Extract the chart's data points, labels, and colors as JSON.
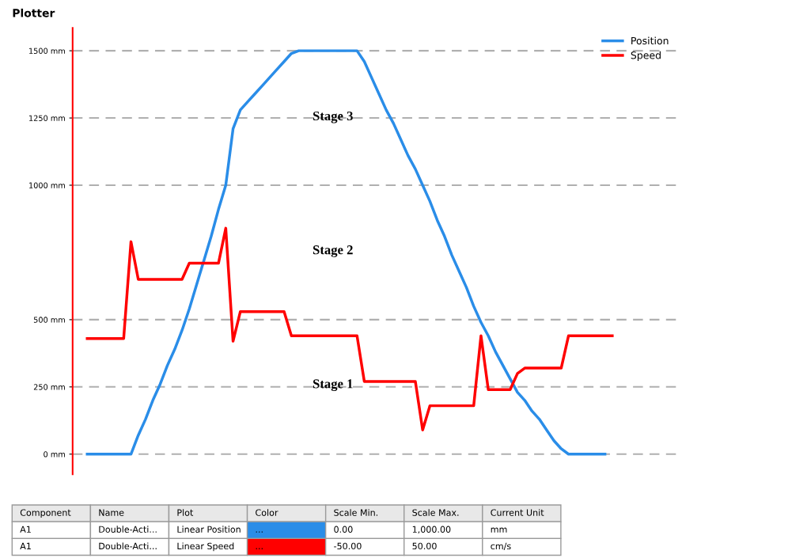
{
  "chart_data": {
    "type": "line",
    "title": "Plotter",
    "categories": [
      null,
      null,
      null,
      null,
      null,
      null,
      null,
      null,
      null,
      null,
      null,
      null,
      null,
      null,
      null,
      null,
      null,
      null,
      null,
      null,
      null,
      null,
      null,
      null,
      null,
      null,
      null,
      null,
      null,
      null,
      null,
      null,
      null,
      null,
      null,
      null,
      null,
      null,
      null,
      null,
      null,
      null,
      null,
      null,
      null,
      null,
      null,
      null,
      null,
      null,
      null,
      null,
      null,
      null,
      null,
      null,
      null,
      null,
      null,
      null,
      null,
      null,
      null,
      null,
      null,
      null,
      null,
      null,
      null,
      null,
      null,
      null,
      null
    ],
    "series": [
      {
        "name": "Position",
        "color": "#2a8de8",
        "values": [
          0,
          0,
          0,
          0,
          0,
          0,
          0,
          70,
          130,
          200,
          260,
          330,
          390,
          460,
          540,
          630,
          720,
          810,
          910,
          1000,
          1210,
          1280,
          1310,
          1340,
          1370,
          1400,
          1430,
          1460,
          1490,
          1500,
          1500,
          1500,
          1500,
          1500,
          1500,
          1500,
          1500,
          1500,
          1460,
          1400,
          1340,
          1280,
          1230,
          1170,
          1110,
          1060,
          1000,
          940,
          870,
          810,
          740,
          680,
          620,
          550,
          490,
          440,
          380,
          330,
          280,
          230,
          200,
          160,
          130,
          90,
          50,
          20,
          0,
          0,
          0,
          0,
          0,
          0,
          null
        ]
      },
      {
        "name": "Speed",
        "color": "#ff0000",
        "values": [
          430,
          430,
          430,
          430,
          430,
          430,
          790,
          650,
          650,
          650,
          650,
          650,
          650,
          650,
          710,
          710,
          710,
          710,
          710,
          840,
          420,
          530,
          530,
          530,
          530,
          530,
          530,
          530,
          440,
          440,
          440,
          440,
          440,
          440,
          440,
          440,
          440,
          440,
          270,
          270,
          270,
          270,
          270,
          270,
          270,
          270,
          90,
          180,
          180,
          180,
          180,
          180,
          180,
          180,
          440,
          240,
          240,
          240,
          240,
          300,
          320,
          320,
          320,
          320,
          320,
          320,
          440,
          440,
          440,
          440,
          440,
          440,
          440
        ]
      }
    ],
    "ylim": [
      -75,
      1585
    ],
    "yticks": [
      {
        "value": 0,
        "label": "0 mm"
      },
      {
        "value": 250,
        "label": "250 mm"
      },
      {
        "value": 500,
        "label": "500 mm"
      },
      {
        "value": 1000,
        "label": "1000 mm"
      },
      {
        "value": 1250,
        "label": "1250 mm"
      },
      {
        "value": 1500,
        "label": "1500 mm"
      }
    ],
    "tick_labels": "y",
    "grid": "y",
    "legend": "top right",
    "line_style": "solid",
    "marker": "none",
    "annotations": [
      "Stage 3",
      "Stage 2",
      "Stage 1",
      "Component",
      "Name",
      "Plot",
      "Color",
      "Scale Min.",
      "Scale Max.",
      "Current Unit",
      "A1",
      "Double-Acti...",
      "Linear Position",
      "...",
      "0.00",
      "1,000.00",
      "mm",
      "A1",
      "Double-Acti...",
      "Linear Speed",
      "...",
      "-50.00",
      "50.00",
      "cm/s"
    ]
  }
}
